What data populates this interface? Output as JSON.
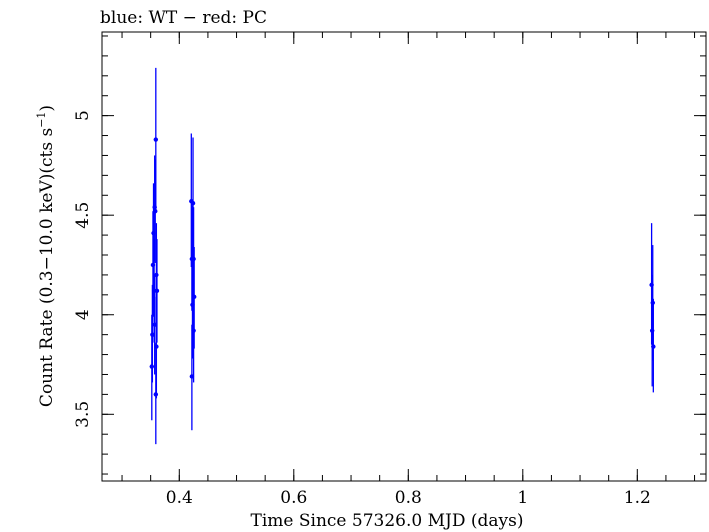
{
  "chart_data": {
    "type": "scatter",
    "title": "blue: WT − red: PC",
    "xlabel": "Time Since 57326.0 MJD (days)",
    "ylabel_main": "Count Rate (0.3−10.0 keV)(cts s",
    "ylabel_sup": "−1",
    "ylabel_close": ")",
    "xlim": [
      0.265,
      1.32
    ],
    "ylim": [
      3.165,
      5.42
    ],
    "x_ticks": [
      {
        "value": 0.4,
        "label": "0.4"
      },
      {
        "value": 0.6,
        "label": "0.6"
      },
      {
        "value": 0.8,
        "label": "0.8"
      },
      {
        "value": 1.0,
        "label": "1"
      },
      {
        "value": 1.2,
        "label": "1.2"
      }
    ],
    "y_ticks": [
      {
        "value": 3.5,
        "label": "3.5"
      },
      {
        "value": 4.0,
        "label": "4"
      },
      {
        "value": 4.5,
        "label": "4.5"
      },
      {
        "value": 5.0,
        "label": "5"
      }
    ],
    "x_minor_step": 0.05,
    "y_minor_step": 0.1,
    "series": [
      {
        "name": "WT",
        "color": "#0000ff",
        "points": [
          {
            "x": 0.352,
            "y": 3.74,
            "lo": 3.47,
            "hi": 4.0
          },
          {
            "x": 0.353,
            "y": 3.9,
            "lo": 3.66,
            "hi": 4.15
          },
          {
            "x": 0.354,
            "y": 4.25,
            "lo": 3.99,
            "hi": 4.52
          },
          {
            "x": 0.355,
            "y": 4.41,
            "lo": 4.15,
            "hi": 4.66
          },
          {
            "x": 0.356,
            "y": 4.12,
            "lo": 3.86,
            "hi": 4.38
          },
          {
            "x": 0.357,
            "y": 3.95,
            "lo": 3.7,
            "hi": 4.2
          },
          {
            "x": 0.357,
            "y": 4.54,
            "lo": 4.27,
            "hi": 4.8
          },
          {
            "x": 0.358,
            "y": 4.52,
            "lo": 4.26,
            "hi": 4.78
          },
          {
            "x": 0.359,
            "y": 4.88,
            "lo": 4.52,
            "hi": 5.24
          },
          {
            "x": 0.359,
            "y": 3.6,
            "lo": 3.35,
            "hi": 3.86
          },
          {
            "x": 0.36,
            "y": 4.2,
            "lo": 3.94,
            "hi": 4.46
          },
          {
            "x": 0.36,
            "y": 3.84,
            "lo": 3.58,
            "hi": 4.09
          },
          {
            "x": 0.361,
            "y": 4.12,
            "lo": 3.86,
            "hi": 4.38
          },
          {
            "x": 0.421,
            "y": 4.57,
            "lo": 4.24,
            "hi": 4.91
          },
          {
            "x": 0.422,
            "y": 4.28,
            "lo": 4.02,
            "hi": 4.55
          },
          {
            "x": 0.422,
            "y": 3.69,
            "lo": 3.42,
            "hi": 3.95
          },
          {
            "x": 0.423,
            "y": 4.05,
            "lo": 3.78,
            "hi": 4.31
          },
          {
            "x": 0.424,
            "y": 4.56,
            "lo": 4.23,
            "hi": 4.89
          },
          {
            "x": 0.425,
            "y": 3.92,
            "lo": 3.66,
            "hi": 4.18
          },
          {
            "x": 0.425,
            "y": 4.28,
            "lo": 4.02,
            "hi": 4.54
          },
          {
            "x": 0.426,
            "y": 4.09,
            "lo": 3.83,
            "hi": 4.34
          },
          {
            "x": 1.225,
            "y": 4.15,
            "lo": 3.85,
            "hi": 4.46
          },
          {
            "x": 1.226,
            "y": 3.92,
            "lo": 3.64,
            "hi": 4.2
          },
          {
            "x": 1.227,
            "y": 4.06,
            "lo": 3.77,
            "hi": 4.35
          },
          {
            "x": 1.228,
            "y": 3.84,
            "lo": 3.61,
            "hi": 4.08
          }
        ]
      }
    ]
  }
}
